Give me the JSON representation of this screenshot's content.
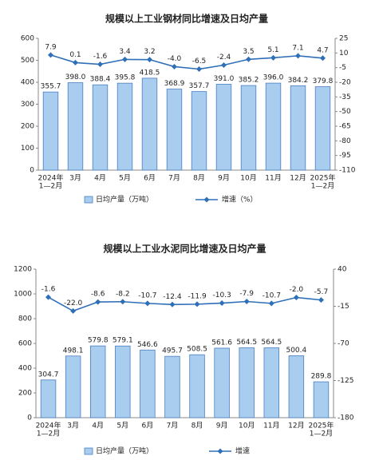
{
  "chart_data": [
    {
      "type": "bar",
      "title": "规模以上工业钢材同比增速及日均产量",
      "categories": [
        [
          "2024年",
          "1—2月"
        ],
        "3月",
        "4月",
        "5月",
        "6月",
        "7月",
        "8月",
        "9月",
        "10月",
        "11月",
        "12月",
        [
          "2025年",
          "1—2月"
        ]
      ],
      "series": [
        {
          "name": "日均产量（万吨）",
          "type": "bar",
          "color": "#a9cdef",
          "values": [
            355.7,
            398.0,
            388.4,
            395.8,
            418.5,
            368.9,
            357.7,
            391.0,
            385.2,
            396.0,
            384.2,
            379.8
          ],
          "value_labels": [
            "355.7",
            "398.0",
            "388.4",
            "395.8",
            "418.5",
            "368.9",
            "357.7",
            "391.0",
            "385.2",
            "396.0",
            "384.2",
            "379.8"
          ]
        },
        {
          "name": "增速（%）",
          "type": "line",
          "axis": "y2",
          "color": "#2f6fb8",
          "values": [
            7.9,
            0.1,
            -1.6,
            3.4,
            3.2,
            -4.0,
            -6.5,
            -2.4,
            3.5,
            5.1,
            7.1,
            4.7
          ],
          "value_labels": [
            "7.9",
            "0.1",
            "-1.6",
            "3.4",
            "3.2",
            "-4.0",
            "-6.5",
            "-2.4",
            "3.5",
            "5.1",
            "7.1",
            "4.7"
          ]
        }
      ],
      "ylim": [
        0,
        600
      ],
      "yticks": [
        0,
        100,
        200,
        300,
        400,
        500,
        600
      ],
      "y2lim": [
        -110,
        25
      ],
      "y2ticks": [
        25,
        10,
        -5,
        -20,
        -35,
        -50,
        -65,
        -80,
        -95,
        -110
      ]
    },
    {
      "type": "bar",
      "title": "规模以上工业水泥同比增速及日均产量",
      "categories": [
        [
          "2024年",
          "1—2月"
        ],
        "3月",
        "4月",
        "5月",
        "6月",
        "7月",
        "8月",
        "9月",
        "10月",
        "11月",
        "12月",
        [
          "2025年",
          "1—2月"
        ]
      ],
      "series": [
        {
          "name": "日均产量（万吨）",
          "type": "bar",
          "color": "#a9cdef",
          "values": [
            304.7,
            498.1,
            579.8,
            579.1,
            546.6,
            495.7,
            508.5,
            561.6,
            564.5,
            564.5,
            500.4,
            289.8
          ],
          "value_labels": [
            "304.7",
            "498.1",
            "579.8",
            "579.1",
            "546.6",
            "495.7",
            "508.5",
            "561.6",
            "564.5",
            "564.5",
            "500.4",
            "289.8"
          ]
        },
        {
          "name": "增速",
          "type": "line",
          "axis": "y2",
          "color": "#2f6fb8",
          "values": [
            -1.6,
            -22.0,
            -8.6,
            -8.2,
            -10.7,
            -12.4,
            -11.9,
            -10.3,
            -7.9,
            -10.7,
            -2.0,
            -5.7
          ],
          "value_labels": [
            "-1.6",
            "-22.0",
            "-8.6",
            "-8.2",
            "-10.7",
            "-12.4",
            "-11.9",
            "-10.3",
            "-7.9",
            "-10.7",
            "-2.0",
            "-5.7"
          ]
        }
      ],
      "ylim": [
        0,
        1200
      ],
      "yticks": [
        0,
        200,
        400,
        600,
        800,
        1000,
        1200
      ],
      "y2lim": [
        -180,
        40
      ],
      "y2ticks": [
        40,
        -15,
        -70,
        -125,
        -180
      ]
    }
  ]
}
